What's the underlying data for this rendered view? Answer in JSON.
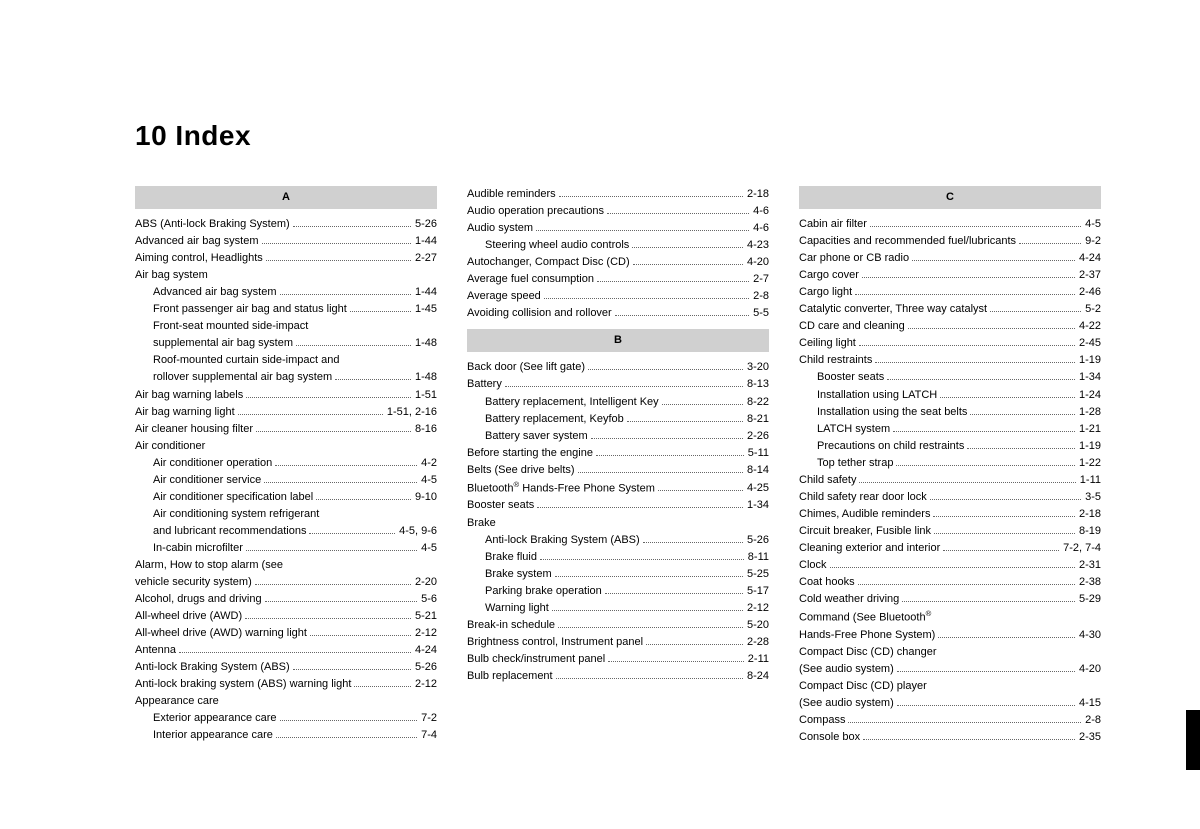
{
  "title": "10 Index",
  "columns": [
    {
      "sections": [
        {
          "header": "A",
          "entries": [
            {
              "label": "ABS (Anti-lock Braking System)",
              "page": "5-26"
            },
            {
              "label": "Advanced air bag system",
              "page": "1-44"
            },
            {
              "label": "Aiming control, Headlights",
              "page": "2-27"
            },
            {
              "label": "Air bag system",
              "noref": true
            },
            {
              "label": "Advanced air bag system",
              "page": "1-44",
              "sub": true
            },
            {
              "label": "Front passenger air bag and status light",
              "page": "1-45",
              "sub": true
            },
            {
              "label": "Front-seat mounted side-impact supplemental air bag system",
              "page": "1-48",
              "sub": true,
              "multi": true
            },
            {
              "label": "Roof-mounted curtain side-impact and rollover supplemental air bag system",
              "page": "1-48",
              "sub": true,
              "multi": true
            },
            {
              "label": "Air bag warning labels",
              "page": "1-51"
            },
            {
              "label": "Air bag warning light",
              "page": "1-51, 2-16"
            },
            {
              "label": "Air cleaner housing filter",
              "page": "8-16"
            },
            {
              "label": "Air conditioner",
              "noref": true
            },
            {
              "label": "Air conditioner operation",
              "page": "4-2",
              "sub": true
            },
            {
              "label": "Air conditioner service",
              "page": "4-5",
              "sub": true
            },
            {
              "label": "Air conditioner specification label",
              "page": "9-10",
              "sub": true
            },
            {
              "label": "Air conditioning system refrigerant and lubricant recommendations",
              "page": "4-5, 9-6",
              "sub": true,
              "multi": true
            },
            {
              "label": "In-cabin microfilter",
              "page": "4-5",
              "sub": true
            },
            {
              "label": "Alarm, How to stop alarm (see vehicle security system)",
              "page": "2-20",
              "multi": true
            },
            {
              "label": "Alcohol, drugs and driving",
              "page": "5-6"
            },
            {
              "label": "All-wheel drive (AWD)",
              "page": "5-21"
            },
            {
              "label": "All-wheel drive (AWD) warning light",
              "page": "2-12"
            },
            {
              "label": "Antenna",
              "page": "4-24"
            },
            {
              "label": "Anti-lock Braking System (ABS)",
              "page": "5-26"
            },
            {
              "label": "Anti-lock braking system (ABS) warning light",
              "page": "2-12"
            },
            {
              "label": "Appearance care",
              "noref": true
            },
            {
              "label": "Exterior appearance care",
              "page": "7-2",
              "sub": true
            },
            {
              "label": "Interior appearance care",
              "page": "7-4",
              "sub": true
            }
          ]
        }
      ]
    },
    {
      "sections": [
        {
          "header": null,
          "entries": [
            {
              "label": "Audible reminders",
              "page": "2-18"
            },
            {
              "label": "Audio operation precautions",
              "page": "4-6"
            },
            {
              "label": "Audio system",
              "page": "4-6"
            },
            {
              "label": "Steering wheel audio controls",
              "page": "4-23",
              "sub": true
            },
            {
              "label": "Autochanger, Compact Disc (CD)",
              "page": "4-20"
            },
            {
              "label": "Average fuel consumption",
              "page": "2-7"
            },
            {
              "label": "Average speed",
              "page": "2-8"
            },
            {
              "label": "Avoiding collision and rollover",
              "page": "5-5"
            }
          ]
        },
        {
          "header": "B",
          "entries": [
            {
              "label": "Back door (See lift gate)",
              "page": "3-20"
            },
            {
              "label": "Battery",
              "page": "8-13"
            },
            {
              "label": "Battery replacement, Intelligent Key",
              "page": "8-22",
              "sub": true
            },
            {
              "label": "Battery replacement, Keyfob",
              "page": "8-21",
              "sub": true
            },
            {
              "label": "Battery saver system",
              "page": "2-26",
              "sub": true
            },
            {
              "label": "Before starting the engine",
              "page": "5-11"
            },
            {
              "label": "Belts (See drive belts)",
              "page": "8-14"
            },
            {
              "label": "Bluetooth® Hands-Free Phone System",
              "page": "4-25"
            },
            {
              "label": "Booster seats",
              "page": "1-34"
            },
            {
              "label": "Brake",
              "noref": true
            },
            {
              "label": "Anti-lock Braking System (ABS)",
              "page": "5-26",
              "sub": true
            },
            {
              "label": "Brake fluid",
              "page": "8-11",
              "sub": true
            },
            {
              "label": "Brake system",
              "page": "5-25",
              "sub": true
            },
            {
              "label": "Parking brake operation",
              "page": "5-17",
              "sub": true
            },
            {
              "label": "Warning light",
              "page": "2-12",
              "sub": true
            },
            {
              "label": "Break-in schedule",
              "page": "5-20"
            },
            {
              "label": "Brightness control, Instrument panel",
              "page": "2-28"
            },
            {
              "label": "Bulb check/instrument panel",
              "page": "2-11"
            },
            {
              "label": "Bulb replacement",
              "page": "8-24"
            }
          ]
        }
      ]
    },
    {
      "sections": [
        {
          "header": "C",
          "entries": [
            {
              "label": "Cabin air filter",
              "page": "4-5"
            },
            {
              "label": "Capacities and recommended fuel/lubricants",
              "page": "9-2"
            },
            {
              "label": "Car phone or CB radio",
              "page": "4-24"
            },
            {
              "label": "Cargo cover",
              "page": "2-37"
            },
            {
              "label": "Cargo light",
              "page": "2-46"
            },
            {
              "label": "Catalytic converter, Three way catalyst",
              "page": "5-2"
            },
            {
              "label": "CD care and cleaning",
              "page": "4-22"
            },
            {
              "label": "Ceiling light",
              "page": "2-45"
            },
            {
              "label": "Child restraints",
              "page": "1-19"
            },
            {
              "label": "Booster seats",
              "page": "1-34",
              "sub": true
            },
            {
              "label": "Installation using LATCH",
              "page": "1-24",
              "sub": true
            },
            {
              "label": "Installation using the seat belts",
              "page": "1-28",
              "sub": true
            },
            {
              "label": "LATCH system",
              "page": "1-21",
              "sub": true
            },
            {
              "label": "Precautions on child restraints",
              "page": "1-19",
              "sub": true
            },
            {
              "label": "Top tether strap",
              "page": "1-22",
              "sub": true
            },
            {
              "label": "Child safety",
              "page": "1-11"
            },
            {
              "label": "Child safety rear door lock",
              "page": "3-5"
            },
            {
              "label": "Chimes, Audible reminders",
              "page": "2-18"
            },
            {
              "label": "Circuit breaker, Fusible link",
              "page": "8-19"
            },
            {
              "label": "Cleaning exterior and interior",
              "page": "7-2, 7-4"
            },
            {
              "label": "Clock",
              "page": "2-31"
            },
            {
              "label": "Coat hooks",
              "page": "2-38"
            },
            {
              "label": "Cold weather driving",
              "page": "5-29"
            },
            {
              "label": "Command (See Bluetooth® Hands-Free Phone System)",
              "page": "4-30",
              "multi": true
            },
            {
              "label": "Compact Disc (CD) changer (See audio system)",
              "page": "4-20",
              "multi": true
            },
            {
              "label": "Compact Disc (CD) player (See audio system)",
              "page": "4-15",
              "multi": true
            },
            {
              "label": "Compass",
              "page": "2-8"
            },
            {
              "label": "Console box",
              "page": "2-35"
            }
          ]
        }
      ]
    }
  ]
}
